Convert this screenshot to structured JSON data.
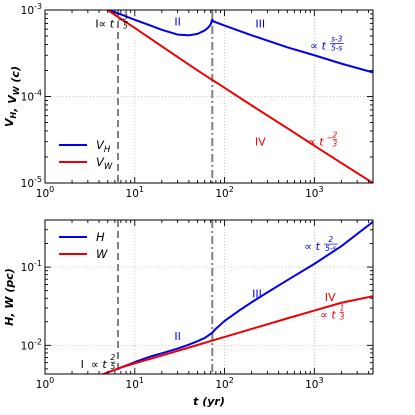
{
  "chart_data": [
    {
      "type": "line",
      "panel": "top",
      "ylabel": "V_H, V_W (c)",
      "xlim": [
        1,
        4500
      ],
      "ylim": [
        1e-05,
        0.001
      ],
      "xscale": "log",
      "yscale": "log",
      "grid": true,
      "legend": "lower-left",
      "xticks": [
        "10^0",
        "10^1",
        "10^2",
        "10^3"
      ],
      "yticks": [
        "10^-5",
        "10^-4",
        "10^-3"
      ],
      "series": [
        {
          "name": "V_H",
          "color": "#0000ee",
          "x": [
            5,
            7,
            10,
            15,
            20,
            30,
            40,
            50,
            60,
            65,
            70,
            73,
            75,
            80,
            100,
            200,
            500,
            1000,
            2000,
            4500
          ],
          "y": [
            0.001,
            0.00089,
            0.00077,
            0.00066,
            0.00059,
            0.00052,
            0.00051,
            0.00053,
            0.00058,
            0.00062,
            0.00068,
            0.00078,
            0.00074,
            0.00072,
            0.00066,
            0.00051,
            0.00037,
            0.0003,
            0.00024,
            0.00019
          ]
        },
        {
          "name": "V_W",
          "color": "#ee0000",
          "x": [
            5,
            7,
            10,
            20,
            50,
            100,
            200,
            500,
            1000,
            2000,
            4500
          ],
          "y": [
            0.001,
            0.00079,
            0.00062,
            0.00038,
            0.0002,
            0.000126,
            7.9e-05,
            4.3e-05,
            2.7e-05,
            1.7e-05,
            1e-05
          ]
        }
      ],
      "reference_lines": [
        {
          "x": 6.5,
          "style": "dashed",
          "color": "#808080"
        },
        {
          "x": 73,
          "style": "dashdot",
          "color": "#808080"
        }
      ],
      "annotations": [
        {
          "text": "I",
          "color": "#000000",
          "x": 3.8,
          "y": 0.00063
        },
        {
          "text": "∝ t^{-3/5}",
          "color": "#000000",
          "x": 5.8,
          "y": 0.00063
        },
        {
          "text": "II",
          "color": "#0000ee",
          "x": 30,
          "y": 0.00066
        },
        {
          "text": "III",
          "color": "#0000ee",
          "x": 250,
          "y": 0.00063
        },
        {
          "text": "∝ t^{(s-3)/(5-s)}",
          "color": "#0000ee",
          "x": 1400,
          "y": 0.00035
        },
        {
          "text": "IV",
          "color": "#ee0000",
          "x": 250,
          "y": 2.7e-05
        },
        {
          "text": "∝ t^{-2/3}",
          "color": "#ee0000",
          "x": 1250,
          "y": 2.7e-05
        }
      ]
    },
    {
      "type": "line",
      "panel": "bottom",
      "xlabel": "t (yr)",
      "ylabel": "H, W (pc)",
      "xlim": [
        1,
        4500
      ],
      "ylim": [
        0.0043,
        0.4
      ],
      "xscale": "log",
      "yscale": "log",
      "grid": true,
      "legend": "upper-left",
      "xticks": [
        "10^0",
        "10^1",
        "10^2",
        "10^3"
      ],
      "yticks": [
        "10^-2",
        "10^-1"
      ],
      "series": [
        {
          "name": "H",
          "color": "#0000ee",
          "x": [
            4,
            5,
            7,
            10,
            15,
            20,
            30,
            40,
            50,
            60,
            73,
            80,
            100,
            150,
            200,
            300,
            500,
            1000,
            2000,
            4500
          ],
          "y": [
            0.0041,
            0.0045,
            0.0052,
            0.0061,
            0.0072,
            0.0079,
            0.0091,
            0.0102,
            0.0113,
            0.0124,
            0.0145,
            0.0163,
            0.0205,
            0.0285,
            0.0355,
            0.0475,
            0.068,
            0.11,
            0.185,
            0.38
          ]
        },
        {
          "name": "W",
          "color": "#ee0000",
          "x": [
            4,
            5,
            7,
            10,
            20,
            50,
            73,
            100,
            200,
            500,
            1000,
            2000,
            4500
          ],
          "y": [
            0.0041,
            0.0045,
            0.0052,
            0.0059,
            0.0074,
            0.0101,
            0.0115,
            0.0128,
            0.0162,
            0.0221,
            0.0278,
            0.035,
            0.0425
          ]
        }
      ],
      "reference_lines": [
        {
          "x": 6.5,
          "style": "dashed",
          "color": "#808080"
        },
        {
          "x": 73,
          "style": "dashdot",
          "color": "#808080"
        }
      ],
      "annotations": [
        {
          "text": "I",
          "color": "#000000",
          "x": 2.6,
          "y": 0.0051
        },
        {
          "text": "∝ t^{2/5}",
          "color": "#000000",
          "x": 4.5,
          "y": 0.0051
        },
        {
          "text": "II",
          "color": "#0000ee",
          "x": 30,
          "y": 0.0117
        },
        {
          "text": "III",
          "color": "#0000ee",
          "x": 230,
          "y": 0.041
        },
        {
          "text": "∝ t^{2/(5-s)}",
          "color": "#0000ee",
          "x": 1200,
          "y": 0.165
        },
        {
          "text": "IV",
          "color": "#ee0000",
          "x": 1500,
          "y": 0.037
        },
        {
          "text": "∝ t^{1/3}",
          "color": "#ee0000",
          "x": 1600,
          "y": 0.022
        }
      ]
    }
  ]
}
